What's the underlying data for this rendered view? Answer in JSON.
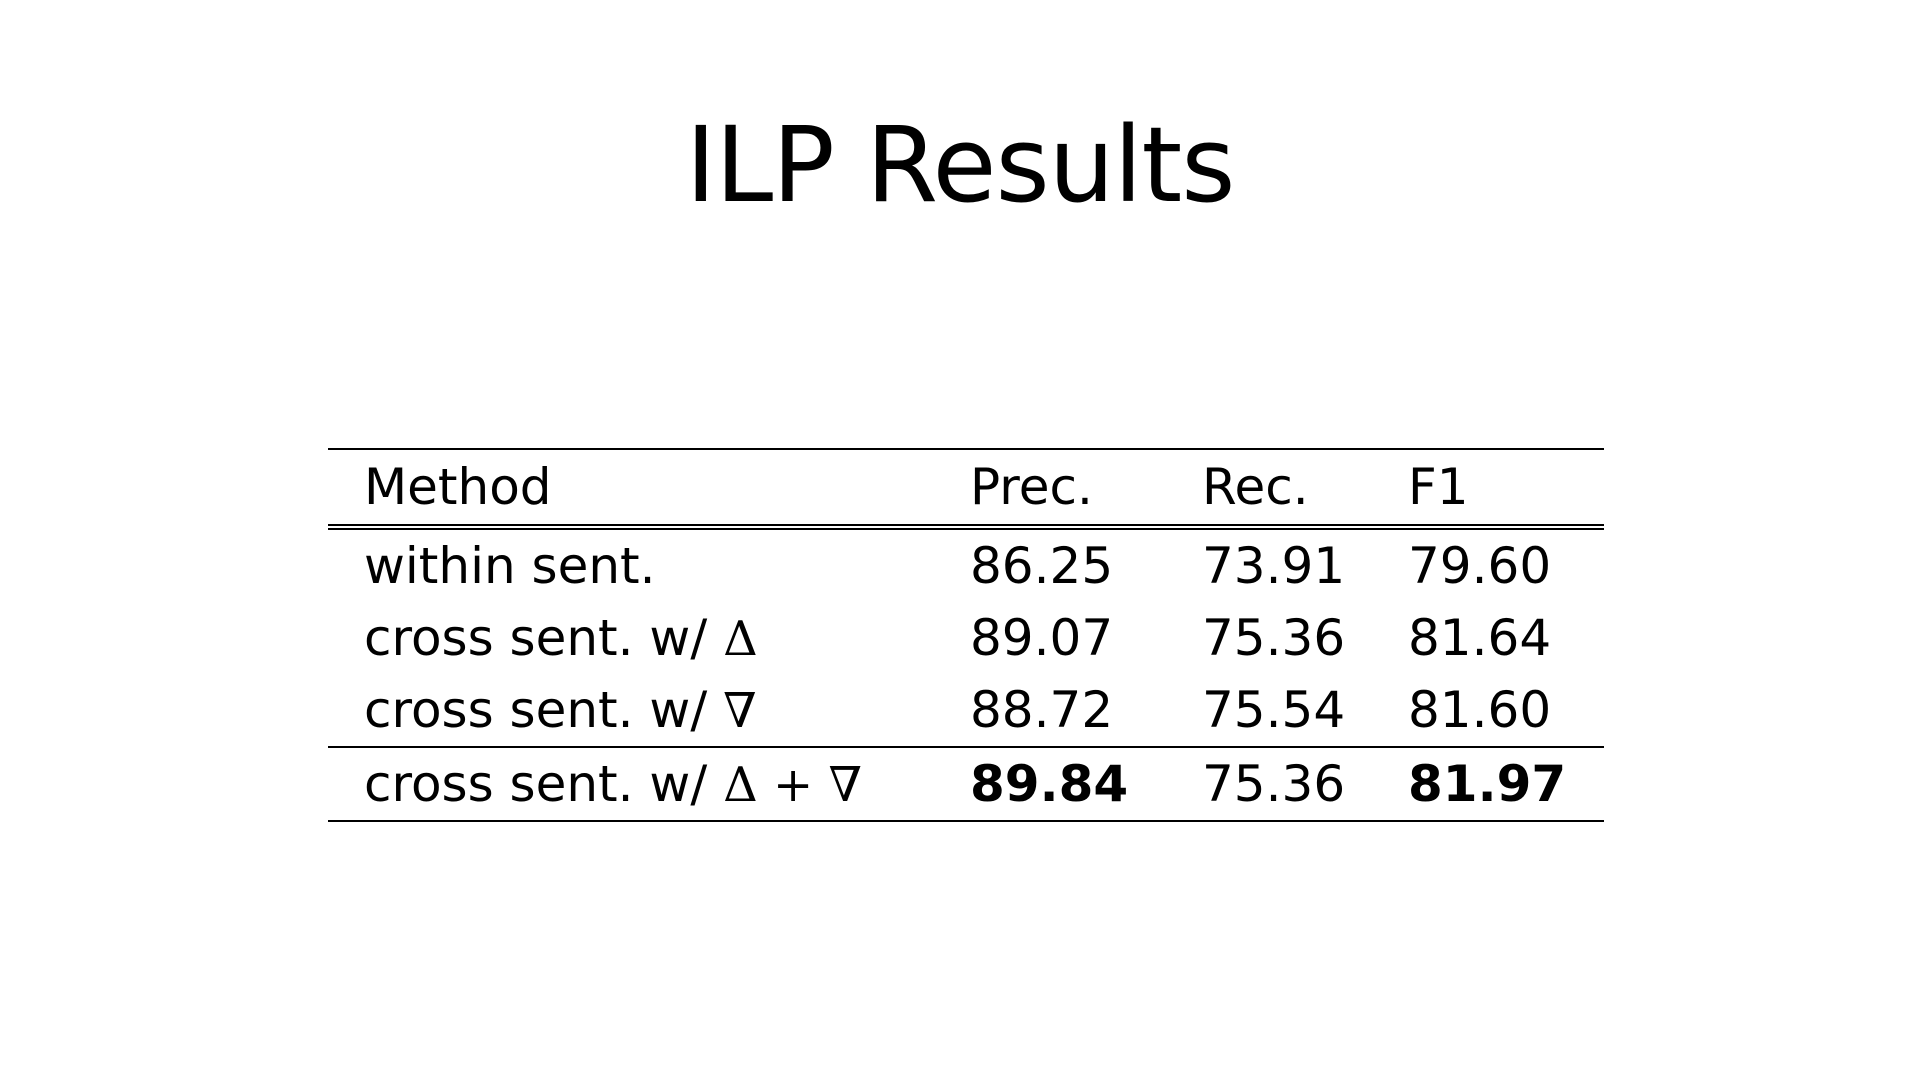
{
  "slide": {
    "title": "ILP Results"
  },
  "table": {
    "columns": [
      "Method",
      "Prec.",
      "Rec.",
      "F1"
    ],
    "rows": [
      {
        "method_text": "within sent.",
        "method_symbol": "",
        "prec": "86.25",
        "rec": "73.91",
        "f1": "79.60"
      },
      {
        "method_text": "cross sent. w/",
        "method_symbol": "Δ",
        "prec": "89.07",
        "rec": "75.36",
        "f1": "81.64"
      },
      {
        "method_text": "cross sent. w/",
        "method_symbol": "∇",
        "prec": "88.72",
        "rec": "75.54",
        "f1": "81.60"
      },
      {
        "method_text": "cross sent. w/",
        "method_symbol": "Δ + ∇",
        "prec": "89.84",
        "rec": "75.36",
        "f1": "81.97"
      }
    ],
    "bold_cells": [
      {
        "row": 3,
        "column": "Prec."
      },
      {
        "row": 3,
        "column": "F1"
      }
    ]
  }
}
